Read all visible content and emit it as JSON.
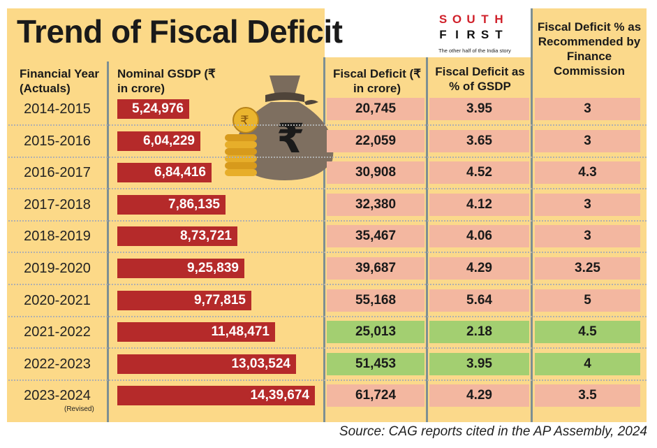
{
  "title": "Trend of Fiscal Deficit",
  "logo": {
    "line1": [
      "S",
      "O",
      "U",
      "T",
      "H"
    ],
    "line2": [
      "F",
      "I",
      "R",
      "S",
      "T"
    ],
    "tagline": "The other half of the India story"
  },
  "headers": {
    "year": "Financial Year (Actuals)",
    "gsdp": "Nominal GSDP (₹ in crore)",
    "fiscal_deficit": "Fiscal Deficit (₹ in crore)",
    "pct_gsdp": "Fiscal Deficit as % of GSDP",
    "recommended": "Fiscal Deficit % as Recommended by Finance Commission"
  },
  "colors": {
    "background": "#fcd988",
    "bar": "#b52a2a",
    "cell_red": "#f3b7a0",
    "cell_green": "#a3cf71"
  },
  "chart_data": {
    "type": "table",
    "rows": [
      {
        "year": "2014-2015",
        "note": "",
        "gsdp": 524976,
        "gsdp_label": "5,24,976",
        "fd": "20,745",
        "pct": "3.95",
        "rec": "3",
        "highlight": "red"
      },
      {
        "year": "2015-2016",
        "note": "",
        "gsdp": 604229,
        "gsdp_label": "6,04,229",
        "fd": "22,059",
        "pct": "3.65",
        "rec": "3",
        "highlight": "red"
      },
      {
        "year": "2016-2017",
        "note": "",
        "gsdp": 684416,
        "gsdp_label": "6,84,416",
        "fd": "30,908",
        "pct": "4.52",
        "rec": "4.3",
        "highlight": "red"
      },
      {
        "year": "2017-2018",
        "note": "",
        "gsdp": 786135,
        "gsdp_label": "7,86,135",
        "fd": "32,380",
        "pct": "4.12",
        "rec": "3",
        "highlight": "red"
      },
      {
        "year": "2018-2019",
        "note": "",
        "gsdp": 873721,
        "gsdp_label": "8,73,721",
        "fd": "35,467",
        "pct": "4.06",
        "rec": "3",
        "highlight": "red"
      },
      {
        "year": "2019-2020",
        "note": "",
        "gsdp": 925839,
        "gsdp_label": "9,25,839",
        "fd": "39,687",
        "pct": "4.29",
        "rec": "3.25",
        "highlight": "red"
      },
      {
        "year": "2020-2021",
        "note": "",
        "gsdp": 977815,
        "gsdp_label": "9,77,815",
        "fd": "55,168",
        "pct": "5.64",
        "rec": "5",
        "highlight": "red"
      },
      {
        "year": "2021-2022",
        "note": "",
        "gsdp": 1148471,
        "gsdp_label": "11,48,471",
        "fd": "25,013",
        "pct": "2.18",
        "rec": "4.5",
        "highlight": "green"
      },
      {
        "year": "2022-2023",
        "note": "",
        "gsdp": 1303524,
        "gsdp_label": "13,03,524",
        "fd": "51,453",
        "pct": "3.95",
        "rec": "4",
        "highlight": "green"
      },
      {
        "year": "2023-2024",
        "note": "(Revised)",
        "gsdp": 1439674,
        "gsdp_label": "14,39,674",
        "fd": "61,724",
        "pct": "4.29",
        "rec": "3.5",
        "highlight": "red"
      }
    ]
  },
  "source": "Source: CAG reports cited in the AP Assembly, 2024"
}
